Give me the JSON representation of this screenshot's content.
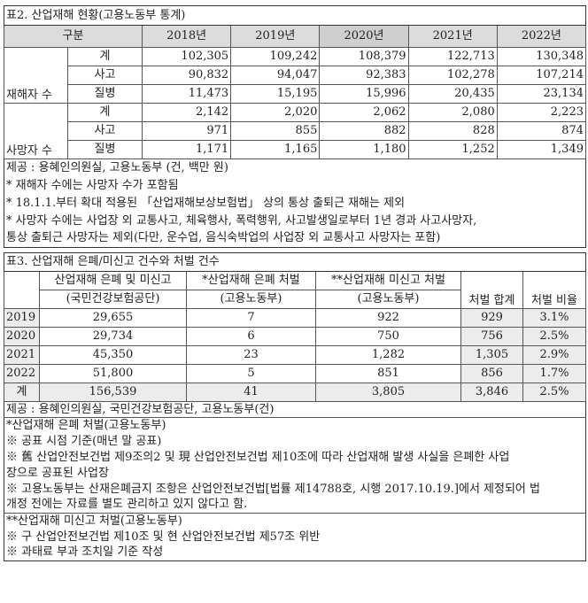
{
  "table2": {
    "title": "표2. 산업재해 현황(고용노동부 통계)",
    "header": [
      "구분",
      "2018년",
      "2019년",
      "2020년",
      "2021년",
      "2022년"
    ],
    "groups": [
      {
        "label": "재해자 수",
        "rows": [
          {
            "sub": "계",
            "values": [
              "102,305",
              "109,242",
              "108,379",
              "122,713",
              "130,348"
            ]
          },
          {
            "sub": "사고",
            "values": [
              "90,832",
              "94,047",
              "92,383",
              "102,278",
              "107,214"
            ]
          },
          {
            "sub": "질병",
            "values": [
              "11,473",
              "15,195",
              "15,996",
              "20,435",
              "23,134"
            ]
          }
        ]
      },
      {
        "label": "사망자 수",
        "rows": [
          {
            "sub": "계",
            "values": [
              "2,142",
              "2,020",
              "2,062",
              "2,080",
              "2,223"
            ]
          },
          {
            "sub": "사고",
            "values": [
              "971",
              "855",
              "882",
              "828",
              "874"
            ]
          },
          {
            "sub": "질병",
            "values": [
              "1,171",
              "1,165",
              "1,180",
              "1,252",
              "1,349"
            ]
          }
        ]
      }
    ],
    "notes": [
      "제공 : 용혜인의원실, 고용노동부 (건, 백만 원)",
      "* 재해자 수에는 사망자 수가 포함됨",
      "* 18.1.1.부터 확대 적용된 「산업재해보상보험법」 상의 통상 출퇴근 재해는 제외",
      "* 사망자 수에는 사업장 외 교통사고, 체육행사, 폭력행위, 사고발생일로부터 1년 경과 사고사망자,",
      "통상 출퇴근 사망자는 제외(다만, 운수업, 음식숙박업의 사업장 외 교통사고 사망자는 포함)"
    ]
  },
  "table3": {
    "title": "표3. 산업재해 은폐/미신고 건수와 처벌 건수",
    "header": [
      {
        "line1": "",
        "line2": ""
      },
      {
        "line1": "산업재해 은폐 및 미신고",
        "line2": "(국민건강보험공단)"
      },
      {
        "line1": "*산업재해 은폐 처벌",
        "line2": "(고용노동부)"
      },
      {
        "line1": "**산업재해 미신고 처벌",
        "line2": "(고용노동부)"
      },
      {
        "line1": "",
        "line2": "처벌 합계"
      },
      {
        "line1": "",
        "line2": "처벌 비율"
      }
    ],
    "rows": [
      [
        "2019",
        "29,655",
        "7",
        "922",
        "929",
        "3.1%"
      ],
      [
        "2020",
        "29,734",
        "6",
        "750",
        "756",
        "2.5%"
      ],
      [
        "2021",
        "45,350",
        "23",
        "1,282",
        "1,305",
        "2.9%"
      ],
      [
        "2022",
        "51,800",
        "5",
        "851",
        "856",
        "1.7%"
      ],
      [
        "계",
        "156,539",
        "41",
        "3,805",
        "3,846",
        "2.5%"
      ]
    ],
    "source": "제공 : 용혜인의원실, 국민건강보험공단, 고용노동부(건)",
    "notes_a": [
      "*산업재해 은폐 처벌(고용노동부)",
      "※ 공표 시점 기준(매년 말 공표)",
      "※ 舊 산업안전보건법 제9조의2 및 現 산업안전보건법 제10조에 따라 산업재해 발생 사실을 은폐한 사업",
      "장으로 공표된 사업장",
      "※ 고용노동부는 산재은폐금지 조항은 산업안전보건법[법률 제14788호, 시행 2017.10.19.]에서 제정되어 법",
      "개정 전에는 자료를 별도 관리하고 있지 않다고 함."
    ],
    "notes_b": [
      "**산업재해 미신고 처벌(고용노동부)",
      "※ 구 산업안전보건법 제10조 및 현 산업안전보건법 제57조 위반",
      "※ 과태료 부과 조치일 기준 작성"
    ]
  }
}
